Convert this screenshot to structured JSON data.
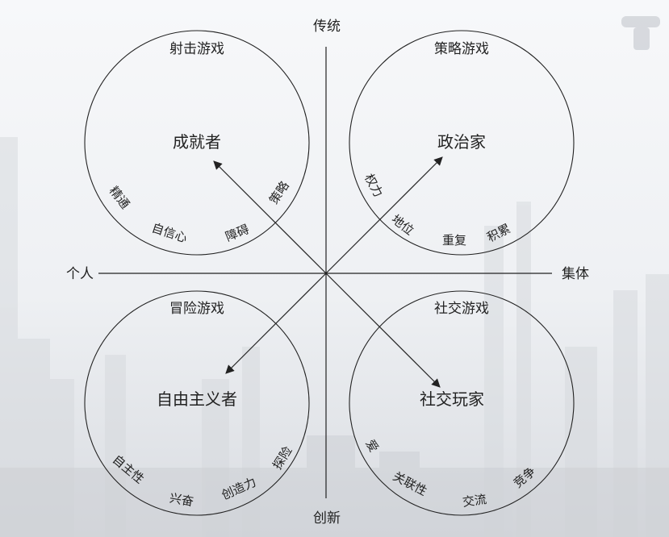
{
  "axes": {
    "top": "传统",
    "bottom": "创新",
    "left": "个人",
    "right": "集体"
  },
  "quadrants": [
    {
      "id": "top-left",
      "title": "射击游戏",
      "player_type": "成就者",
      "motives": [
        "精通",
        "自信心",
        "障碍",
        "策略"
      ]
    },
    {
      "id": "top-right",
      "title": "策略游戏",
      "player_type": "政治家",
      "motives": [
        "权力",
        "地位",
        "重复",
        "积累"
      ]
    },
    {
      "id": "bottom-left",
      "title": "冒险游戏",
      "player_type": "自由主义者",
      "motives": [
        "自主性",
        "兴奋",
        "创造力",
        "探险"
      ]
    },
    {
      "id": "bottom-right",
      "title": "社交游戏",
      "player_type": "社交玩家",
      "motives": [
        "爱",
        "关联性",
        "交流",
        "竞争"
      ]
    }
  ],
  "colors": {
    "line": "#222222",
    "text": "#222222",
    "background": "#f4f5f7"
  }
}
